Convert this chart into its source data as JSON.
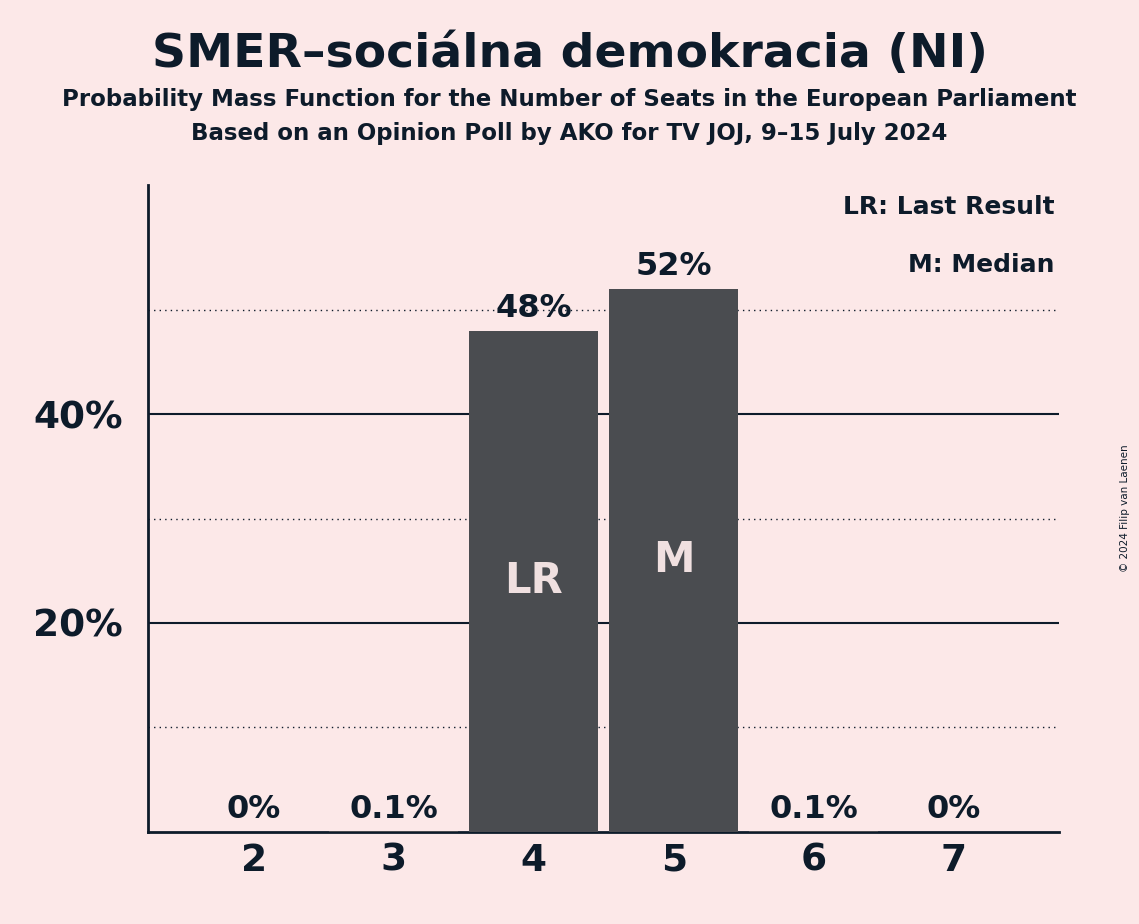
{
  "title": "SMER–sociálna demokracia (NI)",
  "subtitle1": "Probability Mass Function for the Number of Seats in the European Parliament",
  "subtitle2": "Based on an Opinion Poll by AKO for TV JOJ, 9–15 July 2024",
  "copyright": "© 2024 Filip van Laenen",
  "categories": [
    2,
    3,
    4,
    5,
    6,
    7
  ],
  "values": [
    0.0,
    0.001,
    0.48,
    0.52,
    0.001,
    0.0
  ],
  "bar_labels": [
    "0%",
    "0.1%",
    "48%",
    "52%",
    "0.1%",
    "0%"
  ],
  "bar_color": "#4a4c50",
  "background_color": "#fce8e8",
  "text_color": "#0d1b2a",
  "bar_text_color": "#f0e0e0",
  "label_lr": "LR",
  "label_m": "M",
  "lr_bar_index": 2,
  "m_bar_index": 3,
  "legend_lr": "LR: Last Result",
  "legend_m": "M: Median",
  "yticks_solid": [
    0.2,
    0.4
  ],
  "yticks_dotted": [
    0.1,
    0.3,
    0.5
  ],
  "ylim": [
    0,
    0.62
  ],
  "bar_width": 0.92
}
